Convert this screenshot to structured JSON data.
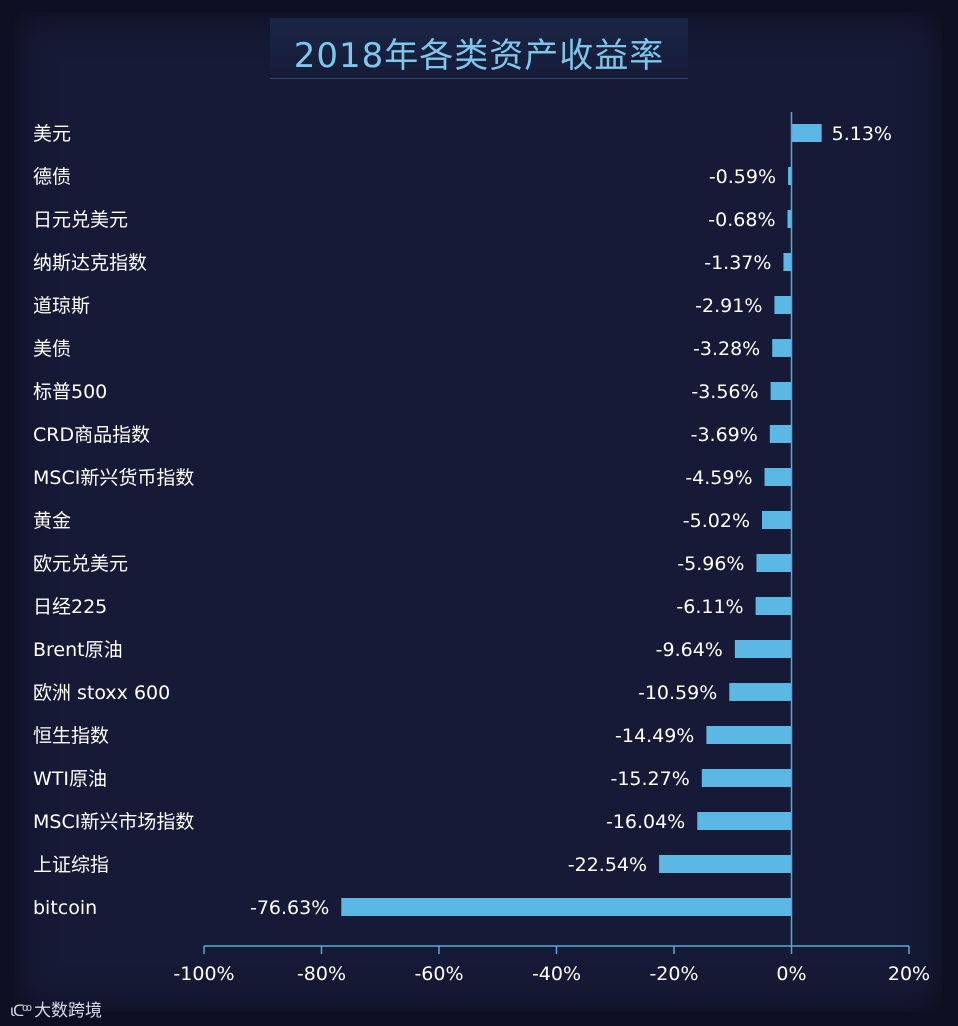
{
  "chart_data": {
    "type": "bar",
    "orientation": "horizontal",
    "title": "2018年各类资产收益率",
    "categories": [
      "美元",
      "德债",
      "日元兑美元",
      "纳斯达克指数",
      "道琼斯",
      "美债",
      "标普500",
      "CRD商品指数",
      "MSCI新兴货币指数",
      "黄金",
      "欧元兑美元",
      "日经225",
      "Brent原油",
      "欧洲 stoxx 600",
      "恒生指数",
      "WTI原油",
      "MSCI新兴市场指数",
      "上证综指",
      "bitcoin"
    ],
    "values": [
      5.13,
      -0.59,
      -0.68,
      -1.37,
      -2.91,
      -3.28,
      -3.56,
      -3.69,
      -4.59,
      -5.02,
      -5.96,
      -6.11,
      -9.64,
      -10.59,
      -14.49,
      -15.27,
      -16.04,
      -22.54,
      -76.63
    ],
    "value_labels": [
      "5.13%",
      "-0.59%",
      "-0.68%",
      "-1.37%",
      "-2.91%",
      "-3.28%",
      "-3.56%",
      "-3.69%",
      "-4.59%",
      "-5.02%",
      "-5.96%",
      "-6.11%",
      "-9.64%",
      "-10.59%",
      "-14.49%",
      "-15.27%",
      "-16.04%",
      "-22.54%",
      "-76.63%"
    ],
    "xlim": [
      -100,
      20
    ],
    "xticks": [
      -100,
      -80,
      -60,
      -40,
      -20,
      0,
      20
    ],
    "xtick_labels": [
      "-100%",
      "-80%",
      "-60%",
      "-40%",
      "-20%",
      "0%",
      "20%"
    ],
    "bar_color": "#5bb7e4",
    "grid": false,
    "legend": "none"
  },
  "watermark": {
    "icon": "kuajing-logo-icon",
    "text": "大数跨境"
  }
}
